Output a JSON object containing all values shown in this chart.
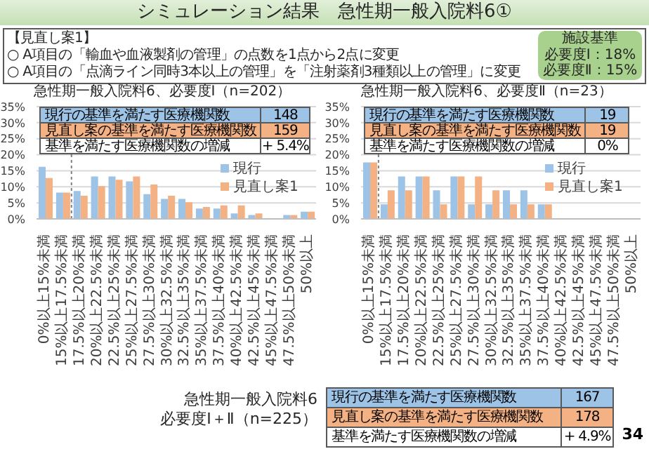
{
  "chart_data": [
    {
      "type": "other",
      "title": "シミュレーション結果　急性期一般入院料6①",
      "annotations": [
        "【見直し案1】",
        "○ A項目の「輸血や血液製剤の管理」の点数を1点から2点に変更",
        "○ A項目の「点滴ライン同時3本以上の管理」を「注射薬剤3種類以上の管理」に変更",
        "施設基準",
        "必要度Ⅰ：18%",
        "必要度Ⅱ：15%",
        "34"
      ]
    },
    {
      "type": "bar",
      "title": "急性期一般入院料6、必要度Ⅰ（n=202）",
      "categories": [
        "0%以上15%未満",
        "15%以上17.5%未満",
        "17.5%以上20%未満",
        "20%以上22.5%未満",
        "22.5%以上25%未満",
        "25%以上27.5%未満",
        "27.5%以上30%未満",
        "30%以上32.5%未満",
        "32.5%以上35%未満",
        "35%以上37.5%未満",
        "37.5%以上40%未満",
        "40%以上42.5%未満",
        "42.5%以上45%未満",
        "45%以上47.5%未満",
        "47.5%以上50%未満",
        "50%以上"
      ],
      "series": [
        {
          "name": "現行",
          "color": "#9dc3e6",
          "values": [
            16,
            8,
            8.5,
            13,
            13,
            11.5,
            7.5,
            6,
            6,
            3,
            3,
            1.5,
            1,
            0,
            1,
            2
          ]
        },
        {
          "name": "見直し案1",
          "color": "#f4b183",
          "values": [
            12.5,
            8,
            7,
            10,
            12,
            13,
            10.5,
            7,
            5,
            3.5,
            4,
            4,
            1.5,
            0,
            1,
            2
          ]
        }
      ],
      "ylim": [
        0,
        35
      ],
      "yticks": [
        {
          "value": 0,
          "label": "0%"
        },
        {
          "value": 5,
          "label": "5%"
        },
        {
          "value": 10,
          "label": "10%"
        },
        {
          "value": 15,
          "label": "15%"
        },
        {
          "value": 20,
          "label": "20%"
        },
        {
          "value": 25,
          "label": "25%"
        },
        {
          "value": 30,
          "label": "30%"
        },
        {
          "value": 35,
          "label": "35%"
        }
      ],
      "grid": "y",
      "legend": "right",
      "ref_lines": [
        {
          "axis": "x",
          "value": "17.5%以上20%未満",
          "color": "#7f7f7f",
          "line_style": "dotted"
        }
      ],
      "annotations": [
        "現行の基準を満たす医療機関数",
        "148",
        "見直し案の基準を満たす医療機関数",
        "159",
        "基準を満たす医療機関数の増減",
        "+ 5.4%"
      ]
    },
    {
      "type": "bar",
      "title": "急性期一般入院料6、必要度Ⅱ（n=23）",
      "categories": [
        "0%以上15%未満",
        "15%以上17.5%未満",
        "17.5%以上20%未満",
        "20%以上22.5%未満",
        "22.5%以上25%未満",
        "25%以上27.5%未満",
        "27.5%以上30%未満",
        "30%以上32.5%未満",
        "32.5%以上35%未満",
        "35%以上37.5%未満",
        "37.5%以上40%未満",
        "40%以上42.5%未満",
        "42.5%以上45%未満",
        "45%以上47.5%未満",
        "47.5%以上50%未満",
        "50%以上"
      ],
      "series": [
        {
          "name": "現行",
          "color": "#9dc3e6",
          "values": [
            17.4,
            4.3,
            13,
            13,
            8.7,
            13,
            4.3,
            4.3,
            8.7,
            8.7,
            4.3,
            0,
            0,
            0,
            0,
            0
          ]
        },
        {
          "name": "見直し案1",
          "color": "#f4b183",
          "values": [
            17.4,
            8.7,
            8.7,
            13,
            4.3,
            13,
            13,
            8.7,
            4.3,
            4.3,
            4.3,
            0,
            0,
            0,
            0,
            0
          ]
        }
      ],
      "ylim": [
        0,
        35
      ],
      "yticks": [
        {
          "value": 0,
          "label": "0%"
        },
        {
          "value": 5,
          "label": "5%"
        },
        {
          "value": 10,
          "label": "10%"
        },
        {
          "value": 15,
          "label": "15%"
        },
        {
          "value": 20,
          "label": "20%"
        },
        {
          "value": 25,
          "label": "25%"
        },
        {
          "value": 30,
          "label": "30%"
        },
        {
          "value": 35,
          "label": "35%"
        }
      ],
      "grid": "y",
      "legend": "right",
      "ref_lines": [
        {
          "axis": "x",
          "value": "15%以上17.5%未満",
          "color": "#7f7f7f",
          "line_style": "dotted"
        }
      ],
      "annotations": [
        "現行の基準を満たす医療機関数",
        "19",
        "見直し案の基準を満たす医療機関数",
        "19",
        "基準を満たす医療機関数の増減",
        "0%"
      ]
    },
    {
      "type": "other",
      "title": "急性期一般入院料6",
      "subtitle": "必要度Ⅰ＋Ⅱ（n=225）",
      "annotations": [
        "現行の基準を満たす医療機関数",
        "167",
        "見直し案の基準を満たす医療機関数",
        "178",
        "基準を満たす医療機関数の増減",
        "+ 4.9%"
      ]
    }
  ]
}
